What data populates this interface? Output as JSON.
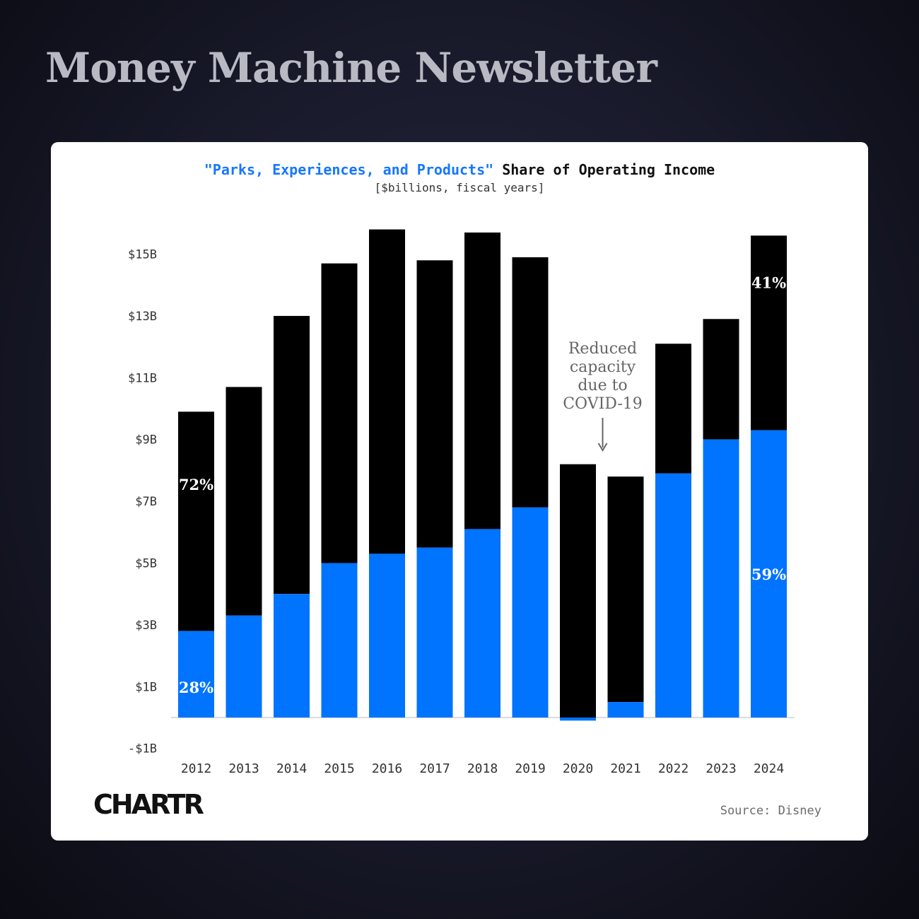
{
  "header": {
    "title": "Money Machine Newsletter"
  },
  "card": {
    "title_highlight": "\"Parks, Experiences, and Products\"",
    "title_rest": " Share of Operating Income",
    "subtitle": "[$billions, fiscal years]",
    "logo": "CHARTR",
    "source": "Source: Disney"
  },
  "colors": {
    "parks": "#0073ff",
    "other": "#000000",
    "title_highlight": "#1677ff",
    "background": "#181929",
    "card": "#ffffff"
  },
  "chart_data": {
    "type": "bar",
    "stacked": true,
    "categories": [
      "2012",
      "2013",
      "2014",
      "2015",
      "2016",
      "2017",
      "2018",
      "2019",
      "2020",
      "2021",
      "2022",
      "2023",
      "2024"
    ],
    "series": [
      {
        "name": "\"Parks, Experiences, and Products\"",
        "color": "#0073ff",
        "values": [
          2.8,
          3.3,
          4.0,
          5.0,
          5.3,
          5.5,
          6.1,
          6.8,
          -0.1,
          0.5,
          7.9,
          9.0,
          9.3
        ]
      },
      {
        "color": "#000000",
        "values": [
          7.1,
          7.4,
          9.0,
          9.7,
          10.5,
          9.3,
          9.6,
          8.1,
          8.2,
          7.3,
          4.2,
          3.9,
          6.3
        ]
      }
    ],
    "y_ticks": [
      "$15B",
      "$13B",
      "$11B",
      "$9B",
      "$7B",
      "$5B",
      "$3B",
      "$1B",
      "-$1B"
    ],
    "y_tick_values": [
      15,
      13,
      11,
      9,
      7,
      5,
      3,
      1,
      -1
    ],
    "ylim": [
      -1,
      16
    ],
    "grid": false,
    "data_labels": [
      {
        "category": "2012",
        "series": 1,
        "text": "72%"
      },
      {
        "category": "2012",
        "series": 0,
        "text": "28%"
      },
      {
        "category": "2024",
        "series": 1,
        "text": "41%"
      },
      {
        "category": "2024",
        "series": 0,
        "text": "59%"
      }
    ],
    "annotation": {
      "category": "2020",
      "lines": [
        "Reduced",
        "capacity",
        "due to",
        "COVID-19"
      ]
    }
  }
}
